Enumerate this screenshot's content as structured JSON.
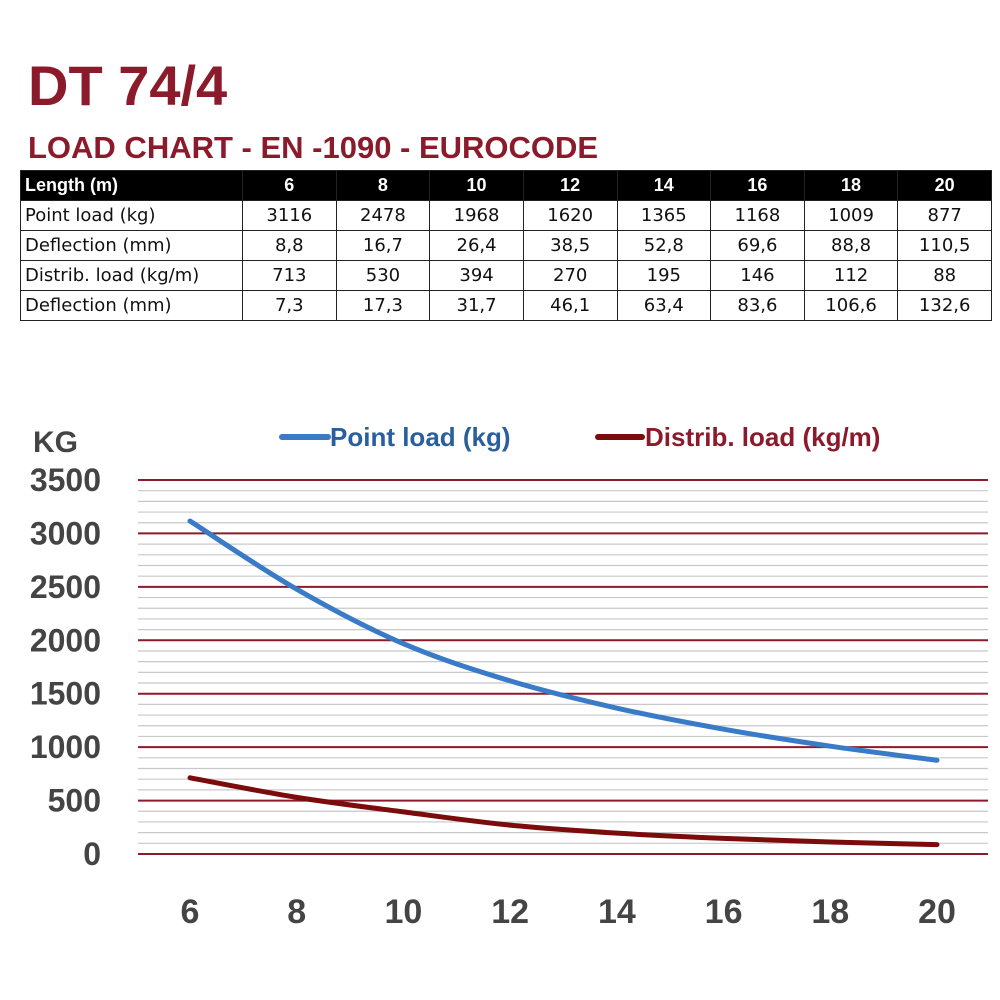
{
  "title": "DT 74/4",
  "subtitle": "LOAD CHART - EN -1090 - EUROCODE",
  "colors": {
    "brand": "#8b1a2b",
    "point_load_line": "#3a7bc8",
    "distrib_load_line": "#7a0c0c",
    "major_grid": "#8b1a2b",
    "minor_grid": "#c8c8c8",
    "table_header_bg": "#000000"
  },
  "table": {
    "header_label": "Length (m)",
    "lengths": [
      "6",
      "8",
      "10",
      "12",
      "14",
      "16",
      "18",
      "20"
    ],
    "rows": [
      {
        "label": "Point load (kg)",
        "values": [
          "3116",
          "2478",
          "1968",
          "1620",
          "1365",
          "1168",
          "1009",
          "877"
        ]
      },
      {
        "label": "Deflection (mm)",
        "values": [
          "8,8",
          "16,7",
          "26,4",
          "38,5",
          "52,8",
          "69,6",
          "88,8",
          "110,5"
        ]
      },
      {
        "label": "Distrib. load (kg/m)",
        "values": [
          "713",
          "530",
          "394",
          "270",
          "195",
          "146",
          "112",
          "88"
        ]
      },
      {
        "label": "Deflection (mm)",
        "values": [
          "7,3",
          "17,3",
          "31,7",
          "46,1",
          "63,4",
          "83,6",
          "106,6",
          "132,6"
        ]
      }
    ]
  },
  "chart_data": {
    "type": "line",
    "ylabel": "KG",
    "xlabel": "",
    "x": [
      6,
      8,
      10,
      12,
      14,
      16,
      18,
      20
    ],
    "x_ticks": [
      "6",
      "8",
      "10",
      "12",
      "14",
      "16",
      "18",
      "20"
    ],
    "y_ticks": [
      "3500",
      "3000",
      "2500",
      "2000",
      "1500",
      "1000",
      "500",
      "0"
    ],
    "ylim": [
      0,
      3500
    ],
    "xlim": [
      6,
      20
    ],
    "grid": true,
    "legend_position": "top",
    "series": [
      {
        "name": "Point load (kg)",
        "values": [
          3116,
          2478,
          1968,
          1620,
          1365,
          1168,
          1009,
          877
        ]
      },
      {
        "name": "Distrib. load (kg/m)",
        "values": [
          713,
          530,
          394,
          270,
          195,
          146,
          112,
          88
        ]
      }
    ]
  }
}
